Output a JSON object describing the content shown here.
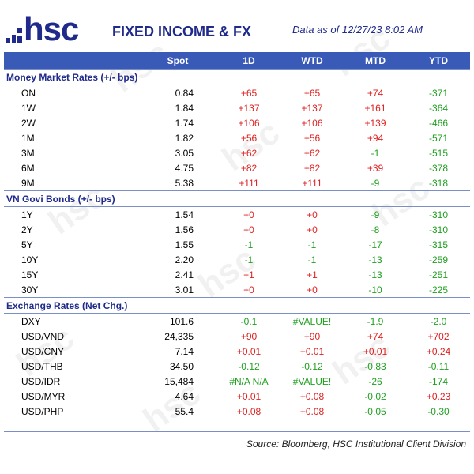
{
  "header": {
    "logo_text": "hsc",
    "title": "FIXED INCOME & FX",
    "as_of": "Data as of  12/27/23 8:02 AM"
  },
  "columns": [
    "Spot",
    "1D",
    "WTD",
    "MTD",
    "YTD"
  ],
  "sections": [
    {
      "title": "Money Market Rates (+/- bps)",
      "rows": [
        {
          "label": "ON",
          "spot": "0.84",
          "d1": "+65",
          "wtd": "+65",
          "mtd": "+74",
          "ytd": "-371"
        },
        {
          "label": "1W",
          "spot": "1.84",
          "d1": "+137",
          "wtd": "+137",
          "mtd": "+161",
          "ytd": "-364"
        },
        {
          "label": "2W",
          "spot": "1.74",
          "d1": "+106",
          "wtd": "+106",
          "mtd": "+139",
          "ytd": "-466"
        },
        {
          "label": "1M",
          "spot": "1.82",
          "d1": "+56",
          "wtd": "+56",
          "mtd": "+94",
          "ytd": "-571"
        },
        {
          "label": "3M",
          "spot": "3.05",
          "d1": "+62",
          "wtd": "+62",
          "mtd": "-1",
          "ytd": "-515"
        },
        {
          "label": "6M",
          "spot": "4.75",
          "d1": "+82",
          "wtd": "+82",
          "mtd": "+39",
          "ytd": "-378"
        },
        {
          "label": "9M",
          "spot": "5.38",
          "d1": "+111",
          "wtd": "+111",
          "mtd": "-9",
          "ytd": "-318"
        }
      ]
    },
    {
      "title": "VN Govi Bonds (+/- bps)",
      "rows": [
        {
          "label": "1Y",
          "spot": "1.54",
          "d1": "+0",
          "wtd": "+0",
          "mtd": "-9",
          "ytd": "-310"
        },
        {
          "label": "2Y",
          "spot": "1.56",
          "d1": "+0",
          "wtd": "+0",
          "mtd": "-8",
          "ytd": "-310"
        },
        {
          "label": "5Y",
          "spot": "1.55",
          "d1": "-1",
          "wtd": "-1",
          "mtd": "-17",
          "ytd": "-315"
        },
        {
          "label": "10Y",
          "spot": "2.20",
          "d1": "-1",
          "wtd": "-1",
          "mtd": "-13",
          "ytd": "-259"
        },
        {
          "label": "15Y",
          "spot": "2.41",
          "d1": "+1",
          "wtd": "+1",
          "mtd": "-13",
          "ytd": "-251"
        },
        {
          "label": "30Y",
          "spot": "3.01",
          "d1": "+0",
          "wtd": "+0",
          "mtd": "-10",
          "ytd": "-225"
        }
      ]
    },
    {
      "title": "Exchange Rates (Net Chg.)",
      "rows": [
        {
          "label": "DXY",
          "spot": "101.6",
          "d1": "-0.1",
          "wtd": "#VALUE!",
          "mtd": "-1.9",
          "ytd": "-2.0"
        },
        {
          "label": "USD/VND",
          "spot": "24,335",
          "d1": "+90",
          "wtd": "+90",
          "mtd": "+74",
          "ytd": "+702"
        },
        {
          "label": "USD/CNY",
          "spot": "7.14",
          "d1": "+0.01",
          "wtd": "+0.01",
          "mtd": "+0.01",
          "ytd": "+0.24"
        },
        {
          "label": "USD/THB",
          "spot": "34.50",
          "d1": "-0.12",
          "wtd": "-0.12",
          "mtd": "-0.83",
          "ytd": "-0.11"
        },
        {
          "label": "USD/IDR",
          "spot": "15,484",
          "d1": "#N/A N/A",
          "wtd": "#VALUE!",
          "mtd": "-26",
          "ytd": "-174"
        },
        {
          "label": "USD/MYR",
          "spot": "4.64",
          "d1": "+0.01",
          "wtd": "+0.08",
          "mtd": "-0.02",
          "ytd": "+0.23"
        },
        {
          "label": "USD/PHP",
          "spot": "55.4",
          "d1": "+0.08",
          "wtd": "+0.08",
          "mtd": "-0.05",
          "ytd": "-0.30"
        }
      ]
    }
  ],
  "footer": {
    "source": "Source: Bloomberg, HSC Institutional Client Division"
  },
  "colors": {
    "brand": "#1f2a8a",
    "header_bg": "#3a5ab8",
    "positive": "#e02020",
    "negative": "#20a020"
  }
}
